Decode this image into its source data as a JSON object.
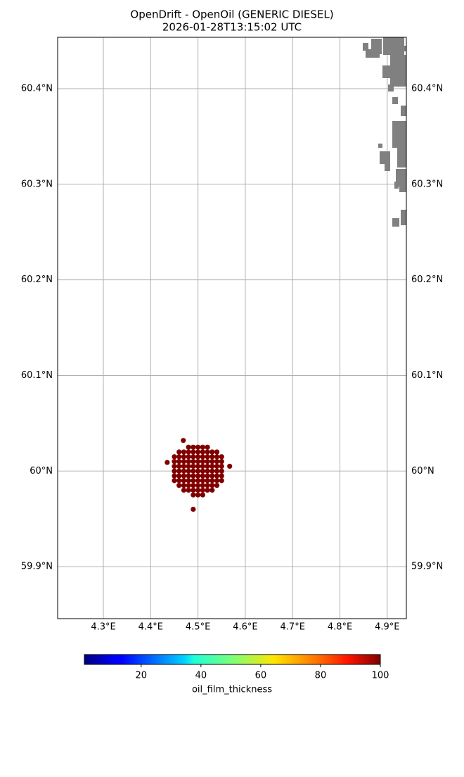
{
  "chart_data": {
    "type": "scatter",
    "title": "OpenDrift - OpenOil (GENERIC DIESEL)",
    "subtitle": "2026-01-28T13:15:02 UTC",
    "xlim": [
      4.2034,
      4.9404
    ],
    "ylim": [
      59.8456,
      60.4537
    ],
    "xticks": [
      {
        "value": 4.3,
        "label": "4.3°E"
      },
      {
        "value": 4.4,
        "label": "4.4°E"
      },
      {
        "value": 4.5,
        "label": "4.5°E"
      },
      {
        "value": 4.6,
        "label": "4.6°E"
      },
      {
        "value": 4.7,
        "label": "4.7°E"
      },
      {
        "value": 4.8,
        "label": "4.8°E"
      },
      {
        "value": 4.9,
        "label": "4.9°E"
      }
    ],
    "yticks": [
      {
        "value": 59.9,
        "label": "59.9°N"
      },
      {
        "value": 60,
        "label": "60°N"
      },
      {
        "value": 60.1,
        "label": "60.1°N"
      },
      {
        "value": 60.2,
        "label": "60.2°N"
      },
      {
        "value": 60.3,
        "label": "60.3°N"
      },
      {
        "value": 60.4,
        "label": "60.4°N"
      }
    ],
    "grid": true,
    "series": [
      {
        "color": "#800000",
        "x": [
          4.48,
          4.49,
          4.5,
          4.51,
          4.52,
          4.46,
          4.47,
          4.48,
          4.49,
          4.5,
          4.51,
          4.52,
          4.53,
          4.54,
          4.45,
          4.46,
          4.47,
          4.48,
          4.49,
          4.5,
          4.51,
          4.52,
          4.53,
          4.54,
          4.55,
          4.45,
          4.46,
          4.47,
          4.48,
          4.49,
          4.5,
          4.51,
          4.52,
          4.53,
          4.54,
          4.55,
          4.45,
          4.46,
          4.47,
          4.48,
          4.49,
          4.5,
          4.51,
          4.52,
          4.53,
          4.54,
          4.55,
          4.45,
          4.46,
          4.47,
          4.48,
          4.49,
          4.5,
          4.51,
          4.52,
          4.53,
          4.54,
          4.55,
          4.45,
          4.46,
          4.47,
          4.48,
          4.49,
          4.5,
          4.51,
          4.52,
          4.53,
          4.54,
          4.55,
          4.45,
          4.46,
          4.47,
          4.48,
          4.49,
          4.5,
          4.51,
          4.52,
          4.53,
          4.54,
          4.55,
          4.46,
          4.47,
          4.48,
          4.49,
          4.5,
          4.51,
          4.52,
          4.53,
          4.54,
          4.47,
          4.48,
          4.49,
          4.5,
          4.51,
          4.52,
          4.53,
          4.49,
          4.5,
          4.51,
          4.49,
          4.435,
          4.567,
          4.469
        ],
        "y": [
          60.025,
          60.025,
          60.025,
          60.025,
          60.025,
          60.02,
          60.02,
          60.02,
          60.02,
          60.02,
          60.02,
          60.02,
          60.02,
          60.02,
          60.015,
          60.015,
          60.015,
          60.015,
          60.015,
          60.015,
          60.015,
          60.015,
          60.015,
          60.015,
          60.015,
          60.01,
          60.01,
          60.01,
          60.01,
          60.01,
          60.01,
          60.01,
          60.01,
          60.01,
          60.01,
          60.01,
          60.005,
          60.005,
          60.005,
          60.005,
          60.005,
          60.005,
          60.005,
          60.005,
          60.005,
          60.005,
          60.005,
          60,
          60,
          60,
          60,
          60,
          60,
          60,
          60,
          60,
          60,
          60,
          59.995,
          59.995,
          59.995,
          59.995,
          59.995,
          59.995,
          59.995,
          59.995,
          59.995,
          59.995,
          59.995,
          59.99,
          59.99,
          59.99,
          59.99,
          59.99,
          59.99,
          59.99,
          59.99,
          59.99,
          59.99,
          59.99,
          59.985,
          59.985,
          59.985,
          59.985,
          59.985,
          59.985,
          59.985,
          59.985,
          59.985,
          59.98,
          59.98,
          59.98,
          59.98,
          59.98,
          59.98,
          59.98,
          59.975,
          59.975,
          59.975,
          59.96,
          60.009,
          60.005,
          60.032
        ]
      }
    ],
    "colorbar": {
      "label": "oil_film_thickness",
      "colormap": "jet",
      "lim": [
        1,
        100
      ],
      "ticks": [
        20,
        40,
        60,
        80,
        100
      ]
    }
  }
}
